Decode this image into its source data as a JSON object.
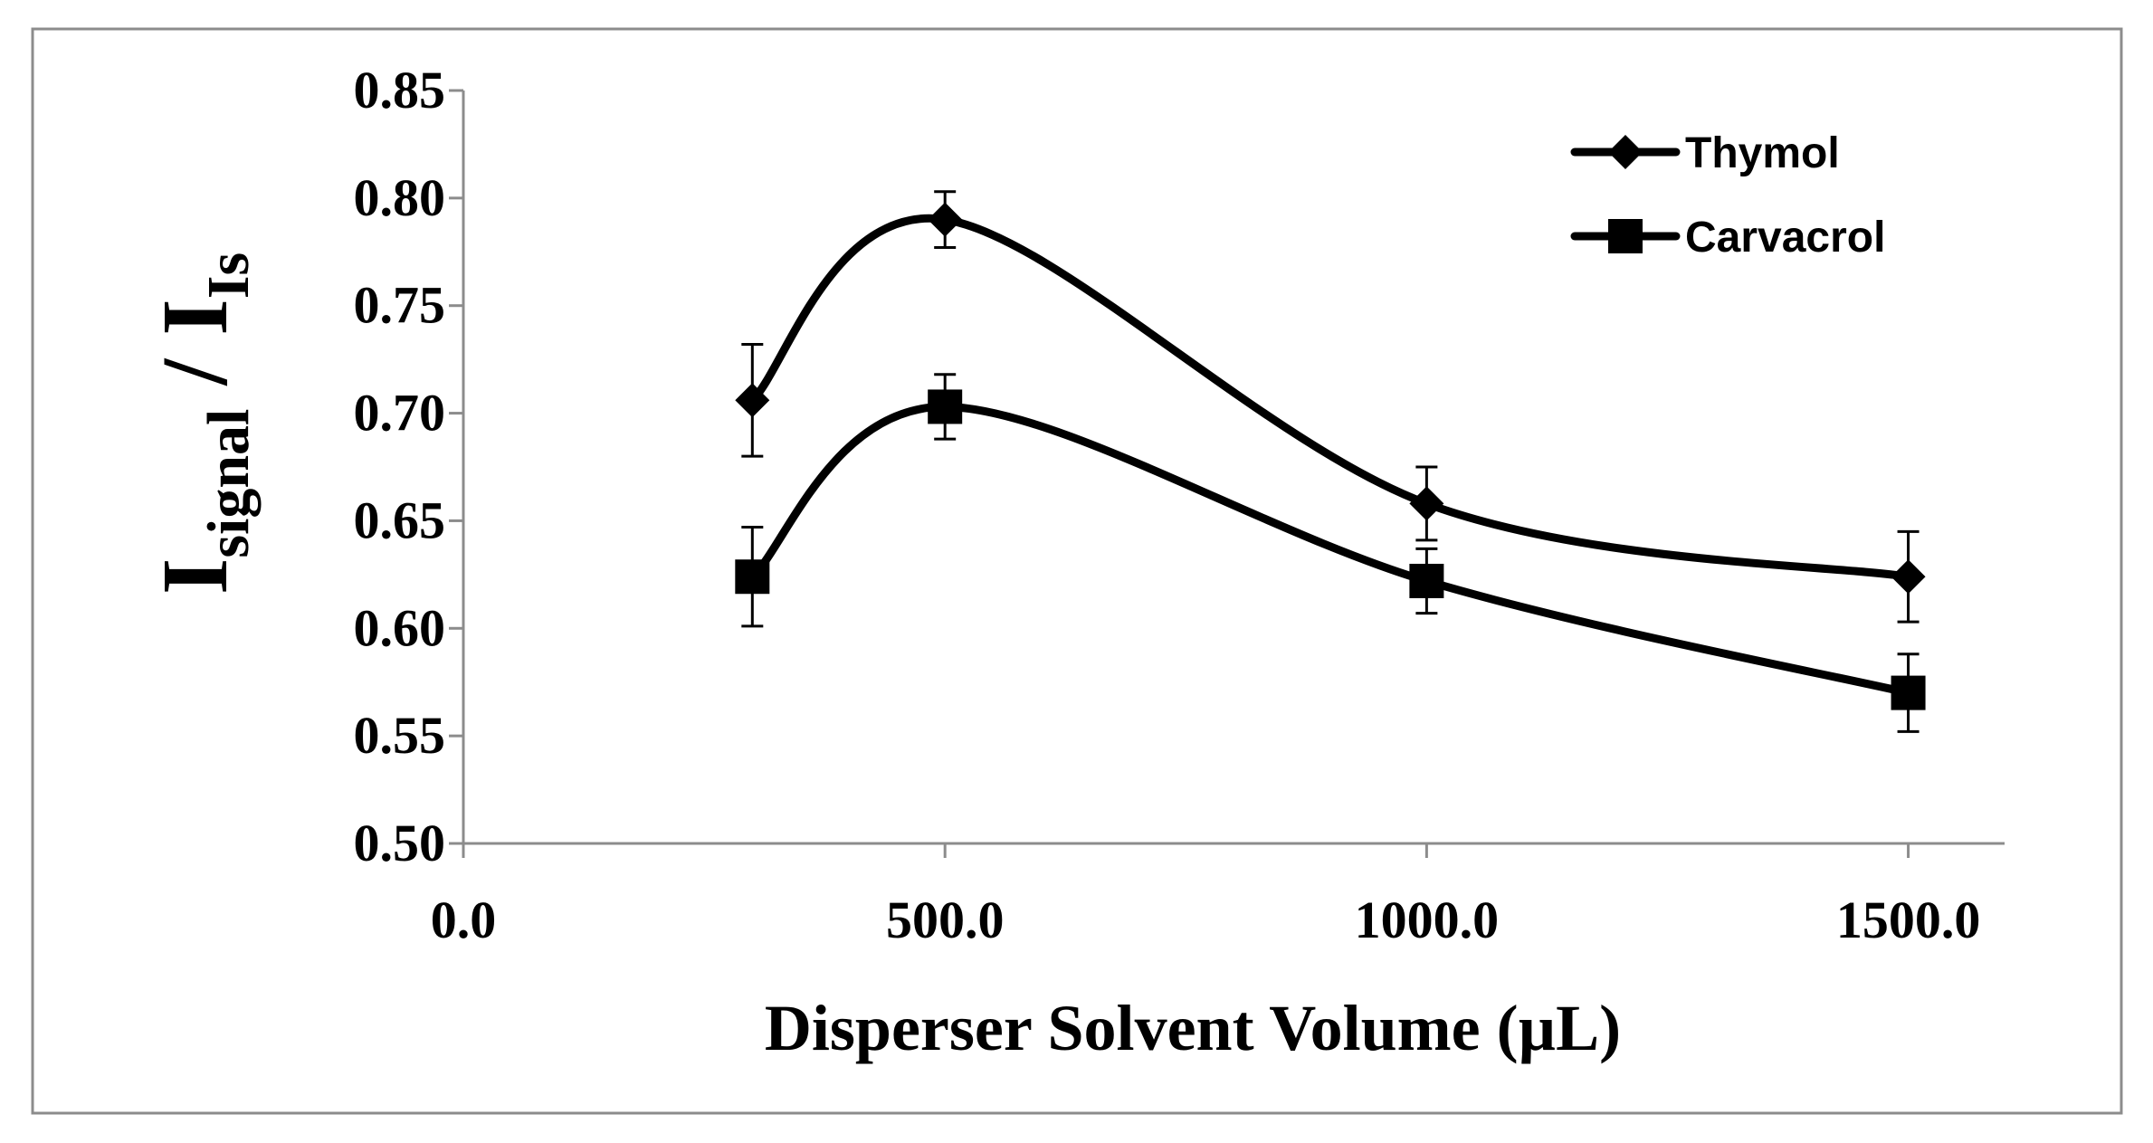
{
  "chart_data": {
    "type": "line",
    "title": "",
    "xlabel": "Disperser Solvent Volume (µL)",
    "ylabel": {
      "main": "I",
      "sub1": "signal",
      "sep": " / ",
      "main2": "I",
      "sub2": "Is"
    },
    "xlim": [
      0,
      1600
    ],
    "ylim": [
      0.5,
      0.85
    ],
    "x_ticks": [
      0,
      500,
      1000,
      1500
    ],
    "x_tick_labels": [
      "0.0",
      "500.0",
      "1000.0",
      "1500.0"
    ],
    "y_ticks": [
      0.5,
      0.55,
      0.6,
      0.65,
      0.7,
      0.75,
      0.8,
      0.85
    ],
    "y_tick_labels": [
      "0.50",
      "0.55",
      "0.60",
      "0.65",
      "0.70",
      "0.75",
      "0.80",
      "0.85"
    ],
    "grid": false,
    "legend_position": "top-right",
    "x": [
      300,
      500,
      1000,
      1500
    ],
    "series": [
      {
        "name": "Thymol",
        "marker": "diamond",
        "values": [
          0.706,
          0.79,
          0.658,
          0.624
        ],
        "errors": [
          0.026,
          0.013,
          0.017,
          0.021
        ]
      },
      {
        "name": "Carvacrol",
        "marker": "square",
        "values": [
          0.624,
          0.703,
          0.622,
          0.57
        ],
        "errors": [
          0.023,
          0.015,
          0.015,
          0.018
        ]
      }
    ],
    "colors": {
      "series": "#000000",
      "axis": "#8c8c8c",
      "frame": "#8c8c8c"
    }
  }
}
